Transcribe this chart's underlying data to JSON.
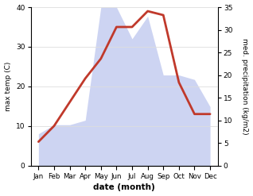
{
  "months": [
    "Jan",
    "Feb",
    "Mar",
    "Apr",
    "May",
    "Jun",
    "Jul",
    "Aug",
    "Sep",
    "Oct",
    "Nov",
    "Dec"
  ],
  "max_temp": [
    6,
    10,
    16,
    22,
    27,
    35,
    35,
    39,
    38,
    21,
    13,
    13
  ],
  "precipitation": [
    7,
    9,
    9,
    10,
    35,
    35,
    28,
    33,
    20,
    20,
    19,
    13
  ],
  "temp_color": "#c0392b",
  "precip_fill_color": "#c5cdf0",
  "precip_fill_alpha": 0.85,
  "ylabel_left": "max temp (C)",
  "ylabel_right": "med. precipitation (kg/m2)",
  "xlabel": "date (month)",
  "ylim_left": [
    0,
    40
  ],
  "ylim_right": [
    0,
    35
  ],
  "yticks_left": [
    0,
    10,
    20,
    30,
    40
  ],
  "yticks_right": [
    0,
    5,
    10,
    15,
    20,
    25,
    30,
    35
  ],
  "bg_color": "#ffffff",
  "line_width": 2.0,
  "grid_color": "#dddddd",
  "figsize": [
    3.18,
    2.47
  ],
  "dpi": 100
}
